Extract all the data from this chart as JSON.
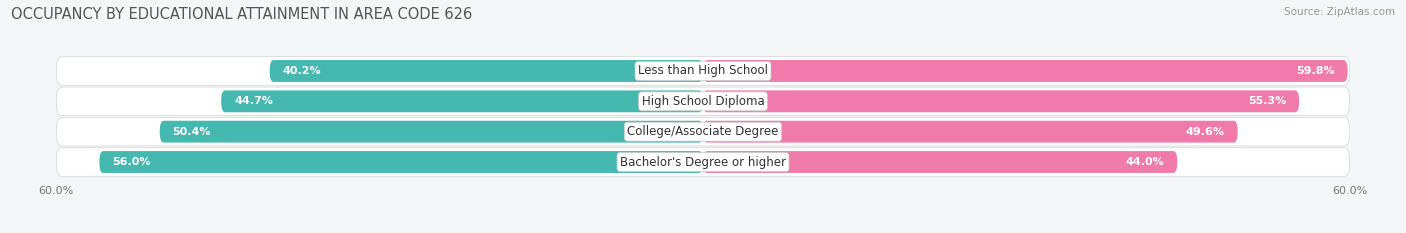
{
  "title": "OCCUPANCY BY EDUCATIONAL ATTAINMENT IN AREA CODE 626",
  "source": "Source: ZipAtlas.com",
  "categories": [
    "Less than High School",
    "High School Diploma",
    "College/Associate Degree",
    "Bachelor's Degree or higher"
  ],
  "owner_values": [
    40.2,
    44.7,
    50.4,
    56.0
  ],
  "renter_values": [
    59.8,
    55.3,
    49.6,
    44.0
  ],
  "owner_color": "#45b8b0",
  "renter_color": "#f07baa",
  "xlim": 60.0,
  "bar_height": 0.72,
  "bg_pill_color": "#e8eaed",
  "background_color": "#f5f6f7",
  "row_bg_color": "#ffffff",
  "title_fontsize": 10.5,
  "label_fontsize": 8.5,
  "value_fontsize": 8.0,
  "axis_label_fontsize": 8.0,
  "source_fontsize": 7.5
}
